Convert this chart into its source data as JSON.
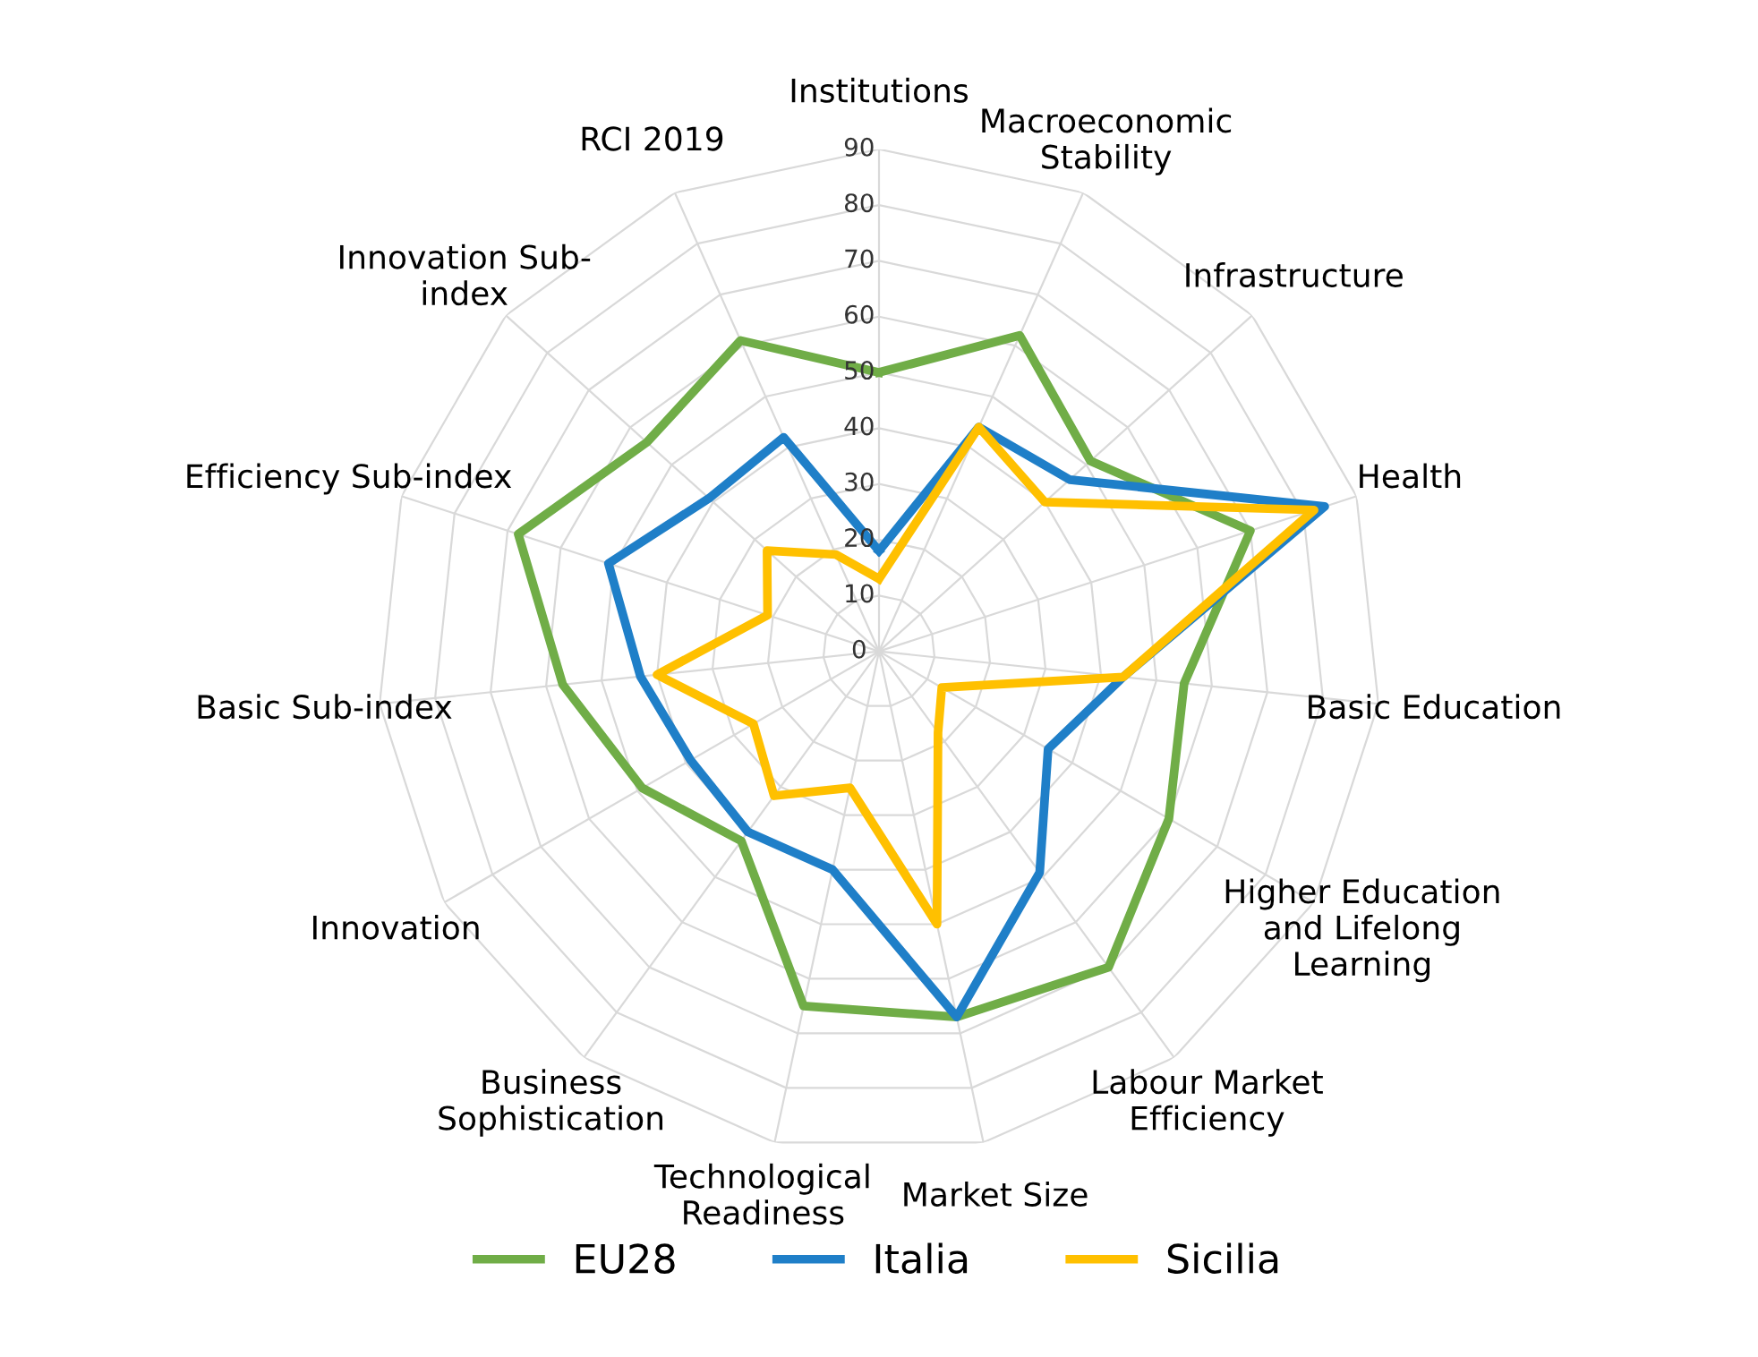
{
  "chart_data": {
    "type": "radar",
    "categories": [
      "Institutions",
      "Macroeconomic\nStability",
      "Infrastructure",
      "Health",
      "Basic Education",
      "Higher Education\nand Lifelong\nLearning",
      "Labour Market\nEfficiency",
      "Market Size",
      "Technological\nReadiness",
      "Business\nSophistication",
      "Innovation",
      "Basic Sub-index",
      "Efficiency Sub-index",
      "Innovation Sub-\nindex",
      "RCI 2019"
    ],
    "series": [
      {
        "name": "EU28",
        "color": "#70ad47",
        "values": [
          50,
          62,
          51,
          70,
          55,
          60,
          70,
          67,
          65,
          42,
          49,
          57,
          68,
          56,
          61
        ]
      },
      {
        "name": "Italia",
        "color": "#1f7fc8",
        "values": [
          18,
          44,
          46,
          84,
          44,
          35,
          49,
          67,
          40,
          40,
          39,
          43,
          51,
          41,
          42
        ]
      },
      {
        "name": "Sicilia",
        "color": "#ffc000",
        "values": [
          13,
          44,
          40,
          82,
          44,
          13,
          18,
          50,
          25,
          32,
          26,
          40,
          21,
          27,
          19
        ]
      }
    ],
    "ylim": [
      0,
      90
    ],
    "yticks": [
      0,
      10,
      20,
      30,
      40,
      50,
      60,
      70,
      80,
      90
    ],
    "grid": true,
    "legend": "bottom",
    "marker": "none",
    "line_style": "solid"
  }
}
